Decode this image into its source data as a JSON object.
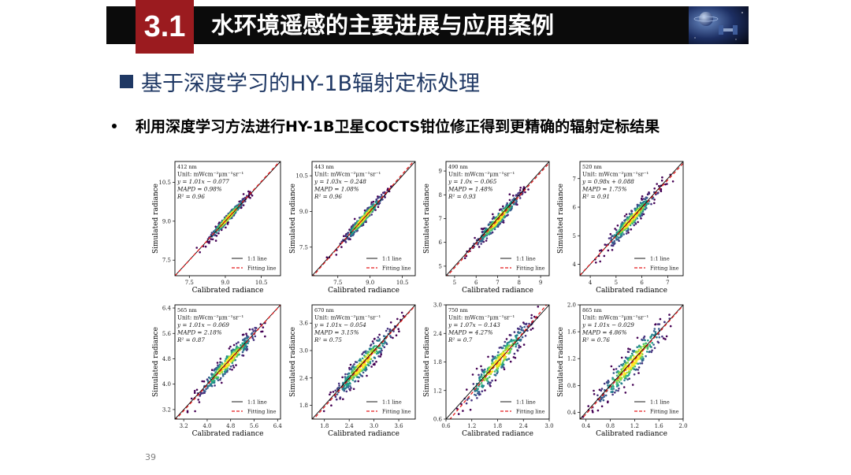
{
  "header": {
    "section_number": "3.1",
    "title": "水环境遥感的主要进展与应用案例",
    "image_icon": "satellite-space-image"
  },
  "heading": "基于深度学习的HY-1B辐射定标处理",
  "bullet": "利用深度学习方法进行HY-1B卫星COCTS钳位修正得到更精确的辐射定标结果",
  "page_number": "39",
  "colors": {
    "title_bar": "#0b0b0b",
    "badge": "#9b1b1f",
    "heading": "#1f3864",
    "fit_line": "#e31a1c"
  },
  "chart_data": [
    {
      "type": "scatter",
      "band": "412 nm",
      "unit": "Unit: mWcm⁻²μm⁻¹sr⁻¹",
      "equation": "y = 1.01x − 0.077",
      "mapd": "MAPD = 0.98%",
      "r2": "R² = 0.96",
      "slope": 1.01,
      "intercept": -0.077,
      "xlabel": "Calibrated radiance",
      "ylabel": "Simulated radiance",
      "xlim": [
        6.9,
        11.3
      ],
      "ylim": [
        6.9,
        11.3
      ],
      "xticks": [
        "7.5",
        "9.0",
        "10.5"
      ],
      "yticks": [
        "7.5",
        "9.0",
        "10.5"
      ],
      "legend": [
        "1:1 line",
        "Fitting line"
      ],
      "legend_position": "lower-right"
    },
    {
      "type": "scatter",
      "band": "443 nm",
      "unit": "Unit: mWcm⁻²μm⁻¹sr⁻¹",
      "equation": "y = 1.03x − 0.248",
      "mapd": "MAPD = 1.08%",
      "r2": "R² = 0.96",
      "slope": 1.03,
      "intercept": -0.248,
      "xlabel": "Calibrated radiance",
      "ylabel": "Simulated radiance",
      "xlim": [
        6.3,
        11.1
      ],
      "ylim": [
        6.3,
        11.1
      ],
      "xticks": [
        "7.5",
        "9.0",
        "10.5"
      ],
      "yticks": [
        "7.5",
        "9.0",
        "10.5"
      ],
      "legend": [
        "1:1 line",
        "Fitting line"
      ],
      "legend_position": "lower-right"
    },
    {
      "type": "scatter",
      "band": "490 nm",
      "unit": "Unit: mWcm⁻²μm⁻¹sr⁻¹",
      "equation": "y = 1.0x − 0.065",
      "mapd": "MAPD = 1.48%",
      "r2": "R² = 0.93",
      "slope": 1.0,
      "intercept": -0.065,
      "xlabel": "Calibrated radiance",
      "ylabel": "Simulated radiance",
      "xlim": [
        4.6,
        9.4
      ],
      "ylim": [
        4.6,
        9.4
      ],
      "xticks": [
        "5",
        "6",
        "7",
        "8",
        "9"
      ],
      "yticks": [
        "5",
        "6",
        "7",
        "8",
        "9"
      ],
      "legend": [
        "1:1 line",
        "Fitting line"
      ],
      "legend_position": "lower-right"
    },
    {
      "type": "scatter",
      "band": "520 nm",
      "unit": "Unit: mWcm⁻²μm⁻¹sr⁻¹",
      "equation": "y = 0.98x + 0.088",
      "mapd": "MAPD = 1.75%",
      "r2": "R² = 0.91",
      "slope": 0.98,
      "intercept": 0.088,
      "xlabel": "Calibrated radiance",
      "ylabel": "Simulated radiance",
      "xlim": [
        3.6,
        7.6
      ],
      "ylim": [
        3.6,
        7.6
      ],
      "xticks": [
        "4",
        "5",
        "6",
        "7"
      ],
      "yticks": [
        "4",
        "5",
        "6",
        "7"
      ],
      "legend": [
        "1:1 line",
        "Fitting line"
      ],
      "legend_position": "lower-right"
    },
    {
      "type": "scatter",
      "band": "565 nm",
      "unit": "Unit: mWcm⁻²μm⁻¹sr⁻¹",
      "equation": "y = 1.01x − 0.069",
      "mapd": "MAPD = 2.18%",
      "r2": "R² = 0.87",
      "slope": 1.01,
      "intercept": -0.069,
      "xlabel": "Calibrated radiance",
      "ylabel": "Simulated radiance",
      "xlim": [
        2.9,
        6.5
      ],
      "ylim": [
        2.9,
        6.5
      ],
      "xticks": [
        "3.2",
        "4.0",
        "4.8",
        "5.6",
        "6.4"
      ],
      "yticks": [
        "3.2",
        "4.0",
        "4.8",
        "5.6",
        "6.4"
      ],
      "legend": [
        "1:1 line",
        "Fitting line"
      ],
      "legend_position": "lower-right"
    },
    {
      "type": "scatter",
      "band": "670 nm",
      "unit": "Unit: mWcm⁻²μm⁻¹sr⁻¹",
      "equation": "y = 1.01x − 0.054",
      "mapd": "MAPD = 3.15%",
      "r2": "R² = 0.75",
      "slope": 1.01,
      "intercept": -0.054,
      "xlabel": "Calibrated radiance",
      "ylabel": "Simulated radiance",
      "xlim": [
        1.5,
        4.0
      ],
      "ylim": [
        1.5,
        4.0
      ],
      "xticks": [
        "1.8",
        "2.4",
        "3.0",
        "3.6"
      ],
      "yticks": [
        "1.8",
        "2.4",
        "3.0",
        "3.6"
      ],
      "legend": [
        "1:1 line",
        "Fitting line"
      ],
      "legend_position": "lower-right"
    },
    {
      "type": "scatter",
      "band": "750 nm",
      "unit": "Unit: mWcm⁻²μm⁻¹sr⁻¹",
      "equation": "y = 1.07x − 0.143",
      "mapd": "MAPD = 4.27%",
      "r2": "R² = 0.7",
      "slope": 1.07,
      "intercept": -0.143,
      "xlabel": "Calibrated radiance",
      "ylabel": "Simulated radiance",
      "xlim": [
        0.6,
        3.0
      ],
      "ylim": [
        0.6,
        3.0
      ],
      "xticks": [
        "0.6",
        "1.2",
        "1.8",
        "2.4",
        "3.0"
      ],
      "yticks": [
        "0.6",
        "1.2",
        "1.8",
        "2.4",
        "3.0"
      ],
      "legend": [
        "1:1 line",
        "Fitting line"
      ],
      "legend_position": "lower-right"
    },
    {
      "type": "scatter",
      "band": "865 nm",
      "unit": "Unit: mWcm⁻²μm⁻¹sr⁻¹",
      "equation": "y = 1.01x − 0.029",
      "mapd": "MAPD = 4.86%",
      "r2": "R² = 0.76",
      "slope": 1.01,
      "intercept": -0.029,
      "xlabel": "Calibrated radiance",
      "ylabel": "Simulated radiance",
      "xlim": [
        0.3,
        2.0
      ],
      "ylim": [
        0.3,
        2.0
      ],
      "xticks": [
        "0.4",
        "0.8",
        "1.2",
        "1.6",
        "2.0"
      ],
      "yticks": [
        "0.4",
        "0.8",
        "1.2",
        "1.6",
        "2.0"
      ],
      "legend": [
        "1:1 line",
        "Fitting line"
      ],
      "legend_position": "lower-right"
    }
  ]
}
